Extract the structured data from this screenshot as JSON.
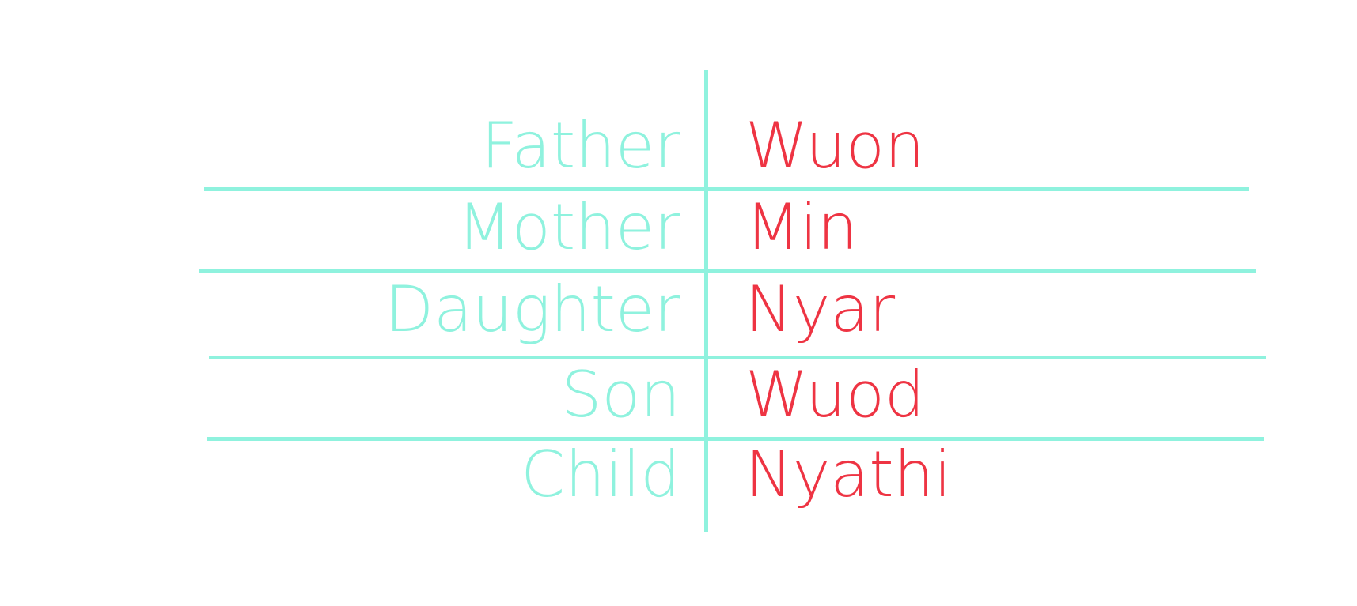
{
  "colors": {
    "english": "#8ff2de",
    "luo": "#ee3443",
    "lines": "#8ff2de"
  },
  "rows": [
    {
      "english": "Father",
      "luo": "Wuon"
    },
    {
      "english": "Mother",
      "luo": "Min"
    },
    {
      "english": "Daughter",
      "luo": "Nyar"
    },
    {
      "english": "Son",
      "luo": "Wuod"
    },
    {
      "english": "Child",
      "luo": "Nyathi"
    }
  ]
}
